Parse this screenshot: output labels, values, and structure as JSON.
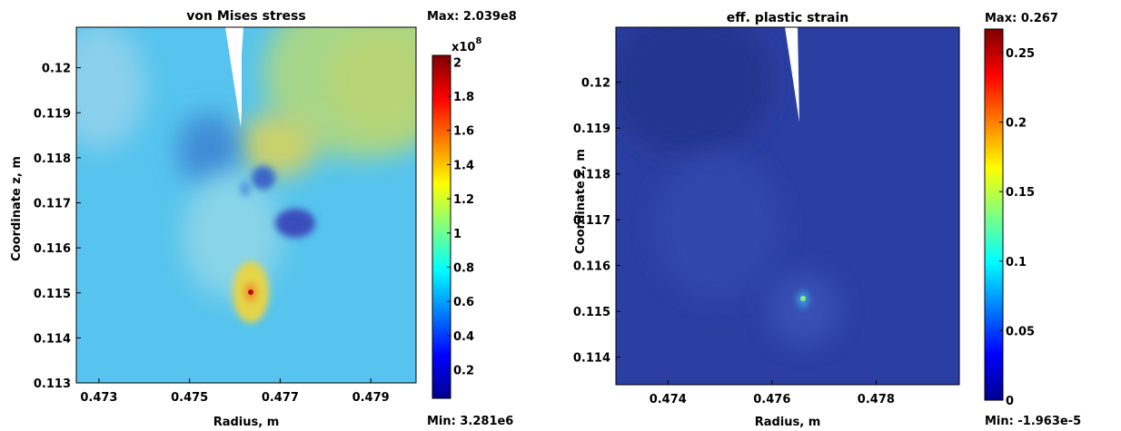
{
  "chart_data": [
    {
      "type": "heatmap",
      "title": "von Mises stress",
      "xlabel": "Radius, m",
      "ylabel": "Coordinate z, m",
      "xlim": [
        0.4725,
        0.48
      ],
      "ylim": [
        0.113,
        0.1209
      ],
      "x_ticks": [
        "0.473",
        "0.475",
        "0.477",
        "0.479"
      ],
      "x_tick_values": [
        0.473,
        0.475,
        0.477,
        0.479
      ],
      "y_ticks": [
        "0.113",
        "0.114",
        "0.115",
        "0.116",
        "0.117",
        "0.118",
        "0.119",
        "0.12"
      ],
      "y_tick_values": [
        0.113,
        0.114,
        0.115,
        0.116,
        0.117,
        0.118,
        0.119,
        0.12
      ],
      "max_label": "Max: 2.039e8",
      "min_label": "Min: 3.281e6",
      "max_value": 203900000,
      "min_value": 3281000,
      "colorbar_exponent_base": "x10",
      "colorbar_exponent": "8",
      "colorbar_ticks": [
        "2",
        "1.8",
        "1.6",
        "1.4",
        "1.2",
        "1",
        "0.8",
        "0.6",
        "0.4",
        "0.2"
      ],
      "colorbar_tick_values": [
        2.0,
        1.8,
        1.6,
        1.4,
        1.2,
        1.0,
        0.8,
        0.6,
        0.4,
        0.2
      ],
      "colorbar_range": [
        0.0328,
        2.039
      ],
      "colormap": "jet",
      "background_level": 0.65,
      "hotspot": {
        "x": 0.4763,
        "z": 0.115,
        "value": 2.039
      },
      "features": [
        {
          "x": 0.4768,
          "z": 0.1179,
          "value": 1.3
        },
        {
          "x": 0.4766,
          "z": 0.1173,
          "value": 0.4
        },
        {
          "x": 0.4771,
          "z": 0.1166,
          "value": 0.3
        },
        {
          "x": 0.4752,
          "z": 0.1176,
          "value": 0.5
        },
        {
          "x": 0.477,
          "z": 0.1185,
          "value": 1.15
        }
      ]
    },
    {
      "type": "heatmap",
      "title": "eff. plastic strain",
      "xlabel": "Radius, m",
      "ylabel": "Coordinate z, m",
      "xlim": [
        0.473,
        0.4796
      ],
      "ylim": [
        0.1134,
        0.1212
      ],
      "x_ticks": [
        "0.474",
        "0.476",
        "0.478"
      ],
      "x_tick_values": [
        0.474,
        0.476,
        0.478
      ],
      "y_ticks": [
        "0.114",
        "0.115",
        "0.116",
        "0.117",
        "0.118",
        "0.119",
        "0.12"
      ],
      "y_tick_values": [
        0.114,
        0.115,
        0.116,
        0.117,
        0.118,
        0.119,
        0.12
      ],
      "max_label": "Max: 0.267",
      "min_label": "Min: -1.963e-5",
      "max_value": 0.267,
      "min_value": -1.963e-05,
      "colorbar_ticks": [
        "0.25",
        "0.2",
        "0.15",
        "0.1",
        "0.05",
        "0"
      ],
      "colorbar_tick_values": [
        0.25,
        0.2,
        0.15,
        0.1,
        0.05,
        0.0
      ],
      "colorbar_range": [
        0.0,
        0.267
      ],
      "colormap": "jet",
      "background_level": 0.012,
      "hotspot": {
        "x": 0.4763,
        "z": 0.115,
        "value": 0.12
      }
    }
  ],
  "colors": {
    "jet": [
      "#00008f",
      "#0000ff",
      "#0080ff",
      "#00ffff",
      "#80ff80",
      "#ffff00",
      "#ff8000",
      "#ff0000",
      "#800000"
    ]
  }
}
